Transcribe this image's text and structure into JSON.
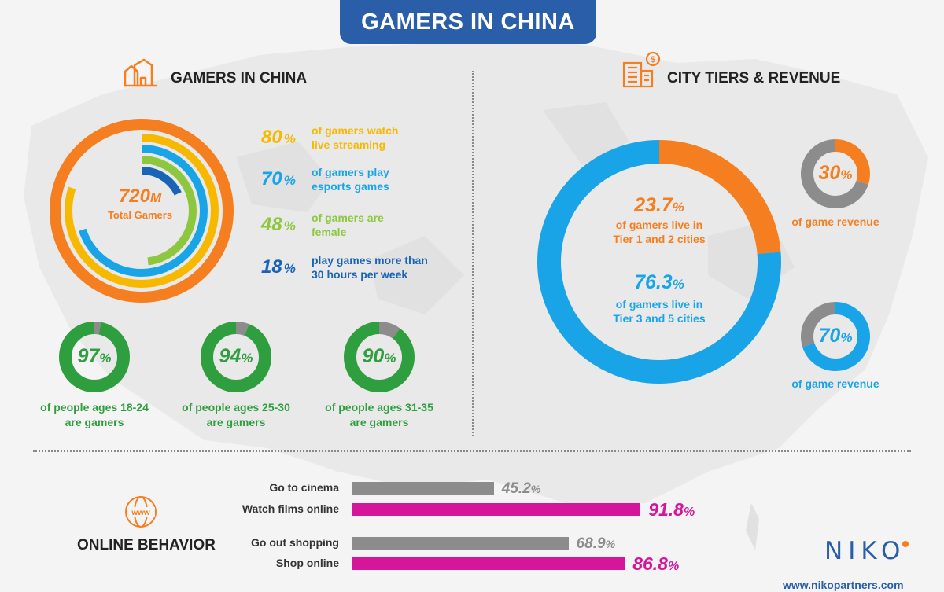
{
  "header": {
    "title": "GAMERS IN CHINA"
  },
  "colors": {
    "orange": "#f57f20",
    "yellow": "#f7b900",
    "lightblue": "#1aa4e8",
    "green": "#8cc73f",
    "darkblue": "#1a64b8",
    "darkgreen": "#2f9e3f",
    "grey": "#8c8c8c",
    "magenta": "#d6169a",
    "navy": "#2a5ea9"
  },
  "icons": {
    "gamers": "buildings-outline-icon",
    "city": "city-revenue-icon",
    "online": "www-globe-icon"
  },
  "gamers_section": {
    "title": "GAMERS IN CHINA",
    "center_value": "720",
    "center_unit": "M",
    "center_label": "Total Gamers",
    "stats": [
      {
        "value": "80",
        "text1": "of gamers watch",
        "text2": "live streaming",
        "color": "#f7b900"
      },
      {
        "value": "70",
        "text1": "of gamers play",
        "text2": "esports games",
        "color": "#1aa4e8"
      },
      {
        "value": "48",
        "text1": "of gamers are",
        "text2": "female",
        "color": "#8cc73f"
      },
      {
        "value": "18",
        "text1": "play games more than",
        "text2": "30 hours per week",
        "color": "#1a64b8"
      }
    ],
    "age_donuts": [
      {
        "value": "97",
        "caption1": "of people ages 18-24",
        "caption2": "are gamers"
      },
      {
        "value": "94",
        "caption1": "of people ages 25-30",
        "caption2": "are gamers"
      },
      {
        "value": "90",
        "caption1": "of people ages 31-35",
        "caption2": "are gamers"
      }
    ]
  },
  "city_section": {
    "title": "CITY TIERS & REVENUE",
    "tier12_value": "23.7",
    "tier12_text1": "of gamers live in",
    "tier12_text2": "Tier 1 and 2 cities",
    "tier35_value": "76.3",
    "tier35_text1": "of gamers live in",
    "tier35_text2": "Tier 3 and 5 cities",
    "revenue": [
      {
        "value": "30",
        "label": "of game revenue"
      },
      {
        "value": "70",
        "label": "of game revenue"
      }
    ]
  },
  "online_section": {
    "title": "ONLINE BEHAVIOR",
    "icon_text": "www"
  },
  "branding": {
    "logo": "NIKO",
    "website": "www.nikopartners.com"
  },
  "chart_data": [
    {
      "type": "pie",
      "title": "",
      "center_label": "720M Total Gamers",
      "series": [
        {
          "name": "of gamers watch live streaming",
          "value": 80
        },
        {
          "name": "of gamers play esports games",
          "value": 70
        },
        {
          "name": "of gamers are female",
          "value": 48
        },
        {
          "name": "play games more than 30 hours per week",
          "value": 18
        }
      ]
    },
    {
      "type": "pie",
      "categories": [
        "of people ages 18-24 are gamers",
        "of people ages 25-30 are gamers",
        "of people ages 31-35 are gamers"
      ],
      "values": [
        97,
        94,
        90
      ]
    },
    {
      "type": "pie",
      "categories": [
        "Tier 1 and 2 cities",
        "Tier 3 and 5 cities"
      ],
      "values": [
        23.7,
        76.3
      ]
    },
    {
      "type": "pie",
      "categories": [
        "of game revenue (Tier 1 and 2)",
        "of game revenue (Tier 3 and 5)"
      ],
      "values": [
        30,
        70
      ]
    },
    {
      "type": "bar",
      "categories": [
        "Go to cinema",
        "Watch films online",
        "Go out shopping",
        "Shop online"
      ],
      "values": [
        45.2,
        91.8,
        68.9,
        86.8
      ],
      "colors": [
        "#8c8c8c",
        "#d6169a",
        "#8c8c8c",
        "#d6169a"
      ]
    }
  ]
}
